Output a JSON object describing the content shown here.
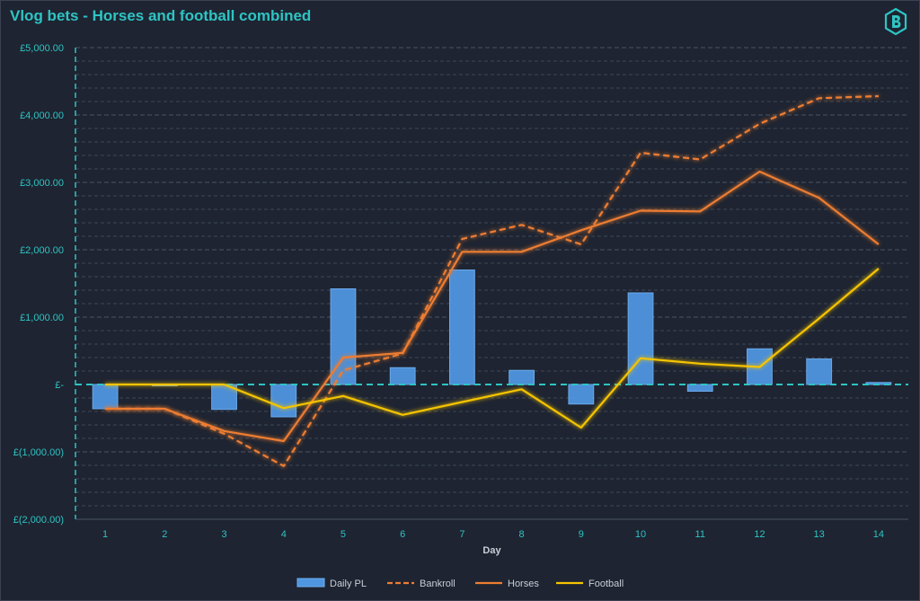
{
  "title": "Vlog bets - Horses and football combined",
  "logo_icon": "b-hexagon-logo-icon",
  "colors": {
    "background": "#1e2431",
    "title": "#2ec4c4",
    "axis": "#2ec4c4",
    "bar": "#4f95e0",
    "bankroll": "#ed7d31",
    "horses": "#ed7d31",
    "football": "#f5c400",
    "grid": "#3d4757"
  },
  "chart_data": {
    "type": "bar",
    "title": "Vlog bets - Horses and football combined",
    "xlabel": "Day",
    "ylabel": "",
    "categories": [
      "1",
      "2",
      "3",
      "4",
      "5",
      "6",
      "7",
      "8",
      "9",
      "10",
      "11",
      "12",
      "13",
      "14"
    ],
    "ylim": [
      -2000,
      5000
    ],
    "y_ticks": [
      -2000,
      -1000,
      0,
      1000,
      2000,
      3000,
      4000,
      5000
    ],
    "y_tick_labels": [
      "£(2,000.00)",
      "£(1,000.00)",
      "£-",
      "£1,000.00",
      "£2,000.00",
      "£3,000.00",
      "£4,000.00",
      "£5,000.00"
    ],
    "grid": true,
    "legend_position": "bottom",
    "series": [
      {
        "name": "Daily PL",
        "type": "bar",
        "values": [
          -360,
          0,
          -370,
          -480,
          1420,
          250,
          1700,
          210,
          -290,
          1360,
          -100,
          530,
          380,
          30
        ]
      },
      {
        "name": "Bankroll",
        "type": "line-dashed",
        "values": [
          -360,
          -360,
          -730,
          -1210,
          210,
          460,
          2160,
          2370,
          2080,
          3440,
          3340,
          3870,
          4250,
          4280
        ]
      },
      {
        "name": "Horses",
        "type": "line",
        "values": [
          -360,
          -360,
          -690,
          -840,
          400,
          470,
          1970,
          1970,
          2290,
          2580,
          2570,
          3160,
          2770,
          2080
        ]
      },
      {
        "name": "Football",
        "type": "line",
        "values": [
          0,
          0,
          0,
          -350,
          -170,
          -450,
          -260,
          -70,
          -640,
          390,
          310,
          260,
          980,
          1720
        ]
      }
    ]
  }
}
